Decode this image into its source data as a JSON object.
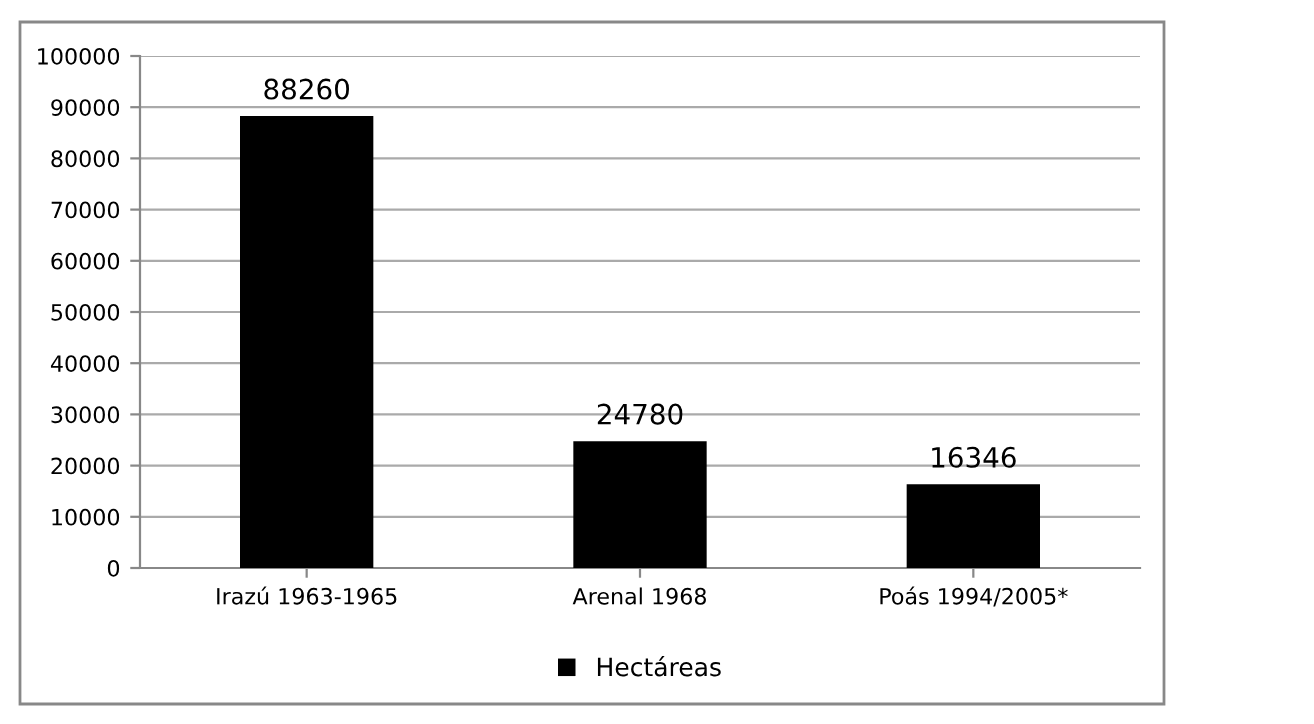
{
  "chart_data": {
    "type": "bar",
    "categories": [
      "Irazú 1963-1965",
      "Arenal 1968",
      "Poás 1994/2005*"
    ],
    "series": [
      {
        "name": "Hectáreas",
        "color": "#000000",
        "values": [
          88260,
          24780,
          16346
        ]
      }
    ],
    "ylim": [
      0,
      100000
    ],
    "yticks": [
      0,
      10000,
      20000,
      30000,
      40000,
      50000,
      60000,
      70000,
      80000,
      90000,
      100000
    ],
    "grid": "y",
    "legend": "bottom",
    "data_labels": true
  }
}
